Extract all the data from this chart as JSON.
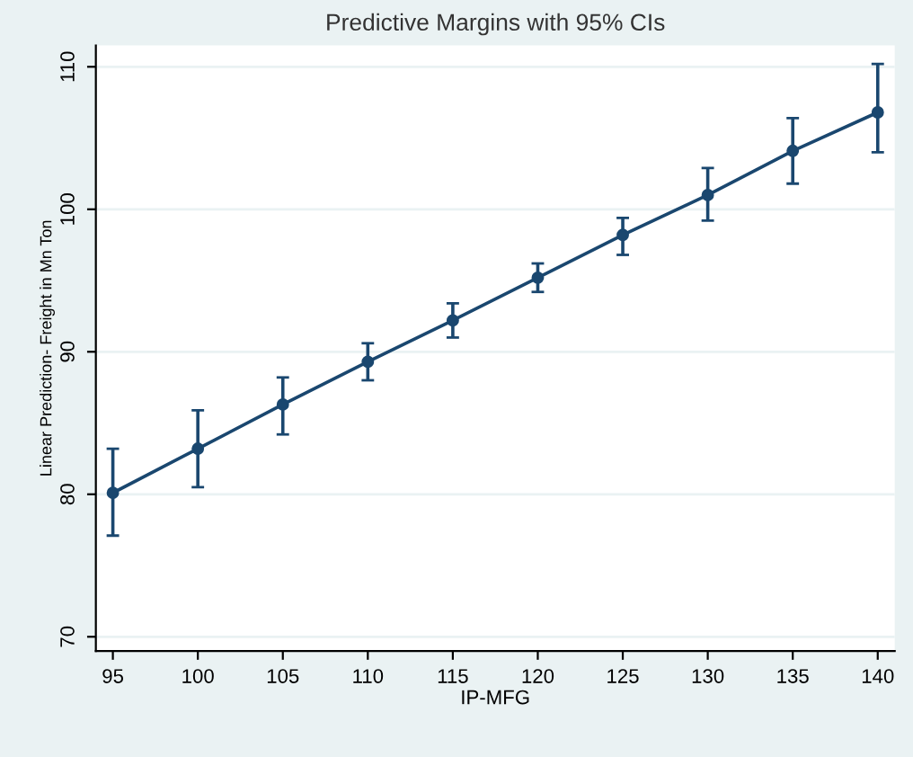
{
  "chart_data": {
    "type": "line",
    "title": "Predictive Margins with 95% CIs",
    "xlabel": "IP-MFG",
    "ylabel": "Linear Prediction- Freight in Mn Ton",
    "x": [
      95,
      100,
      105,
      110,
      115,
      120,
      125,
      130,
      135,
      140
    ],
    "series": [
      {
        "color": "#1a476f",
        "values": [
          80.1,
          83.2,
          86.3,
          89.3,
          92.2,
          95.2,
          98.2,
          101.0,
          104.1,
          106.8
        ],
        "errors": [
          [
            77.1,
            83.2
          ],
          [
            80.5,
            85.9
          ],
          [
            84.2,
            88.2
          ],
          [
            88.0,
            90.6
          ],
          [
            91.0,
            93.4
          ],
          [
            94.2,
            96.2
          ],
          [
            96.8,
            99.4
          ],
          [
            99.2,
            102.9
          ],
          [
            101.8,
            106.4
          ],
          [
            104.0,
            110.2
          ]
        ]
      }
    ],
    "xlim": [
      94,
      141
    ],
    "ylim": [
      69,
      111.5
    ],
    "xticks": [
      95,
      100,
      105,
      110,
      115,
      120,
      125,
      130,
      135,
      140
    ],
    "yticks": [
      70,
      80,
      90,
      100,
      110
    ],
    "grid": "y",
    "marker": "circle",
    "line_style": "solid",
    "legend": false
  }
}
